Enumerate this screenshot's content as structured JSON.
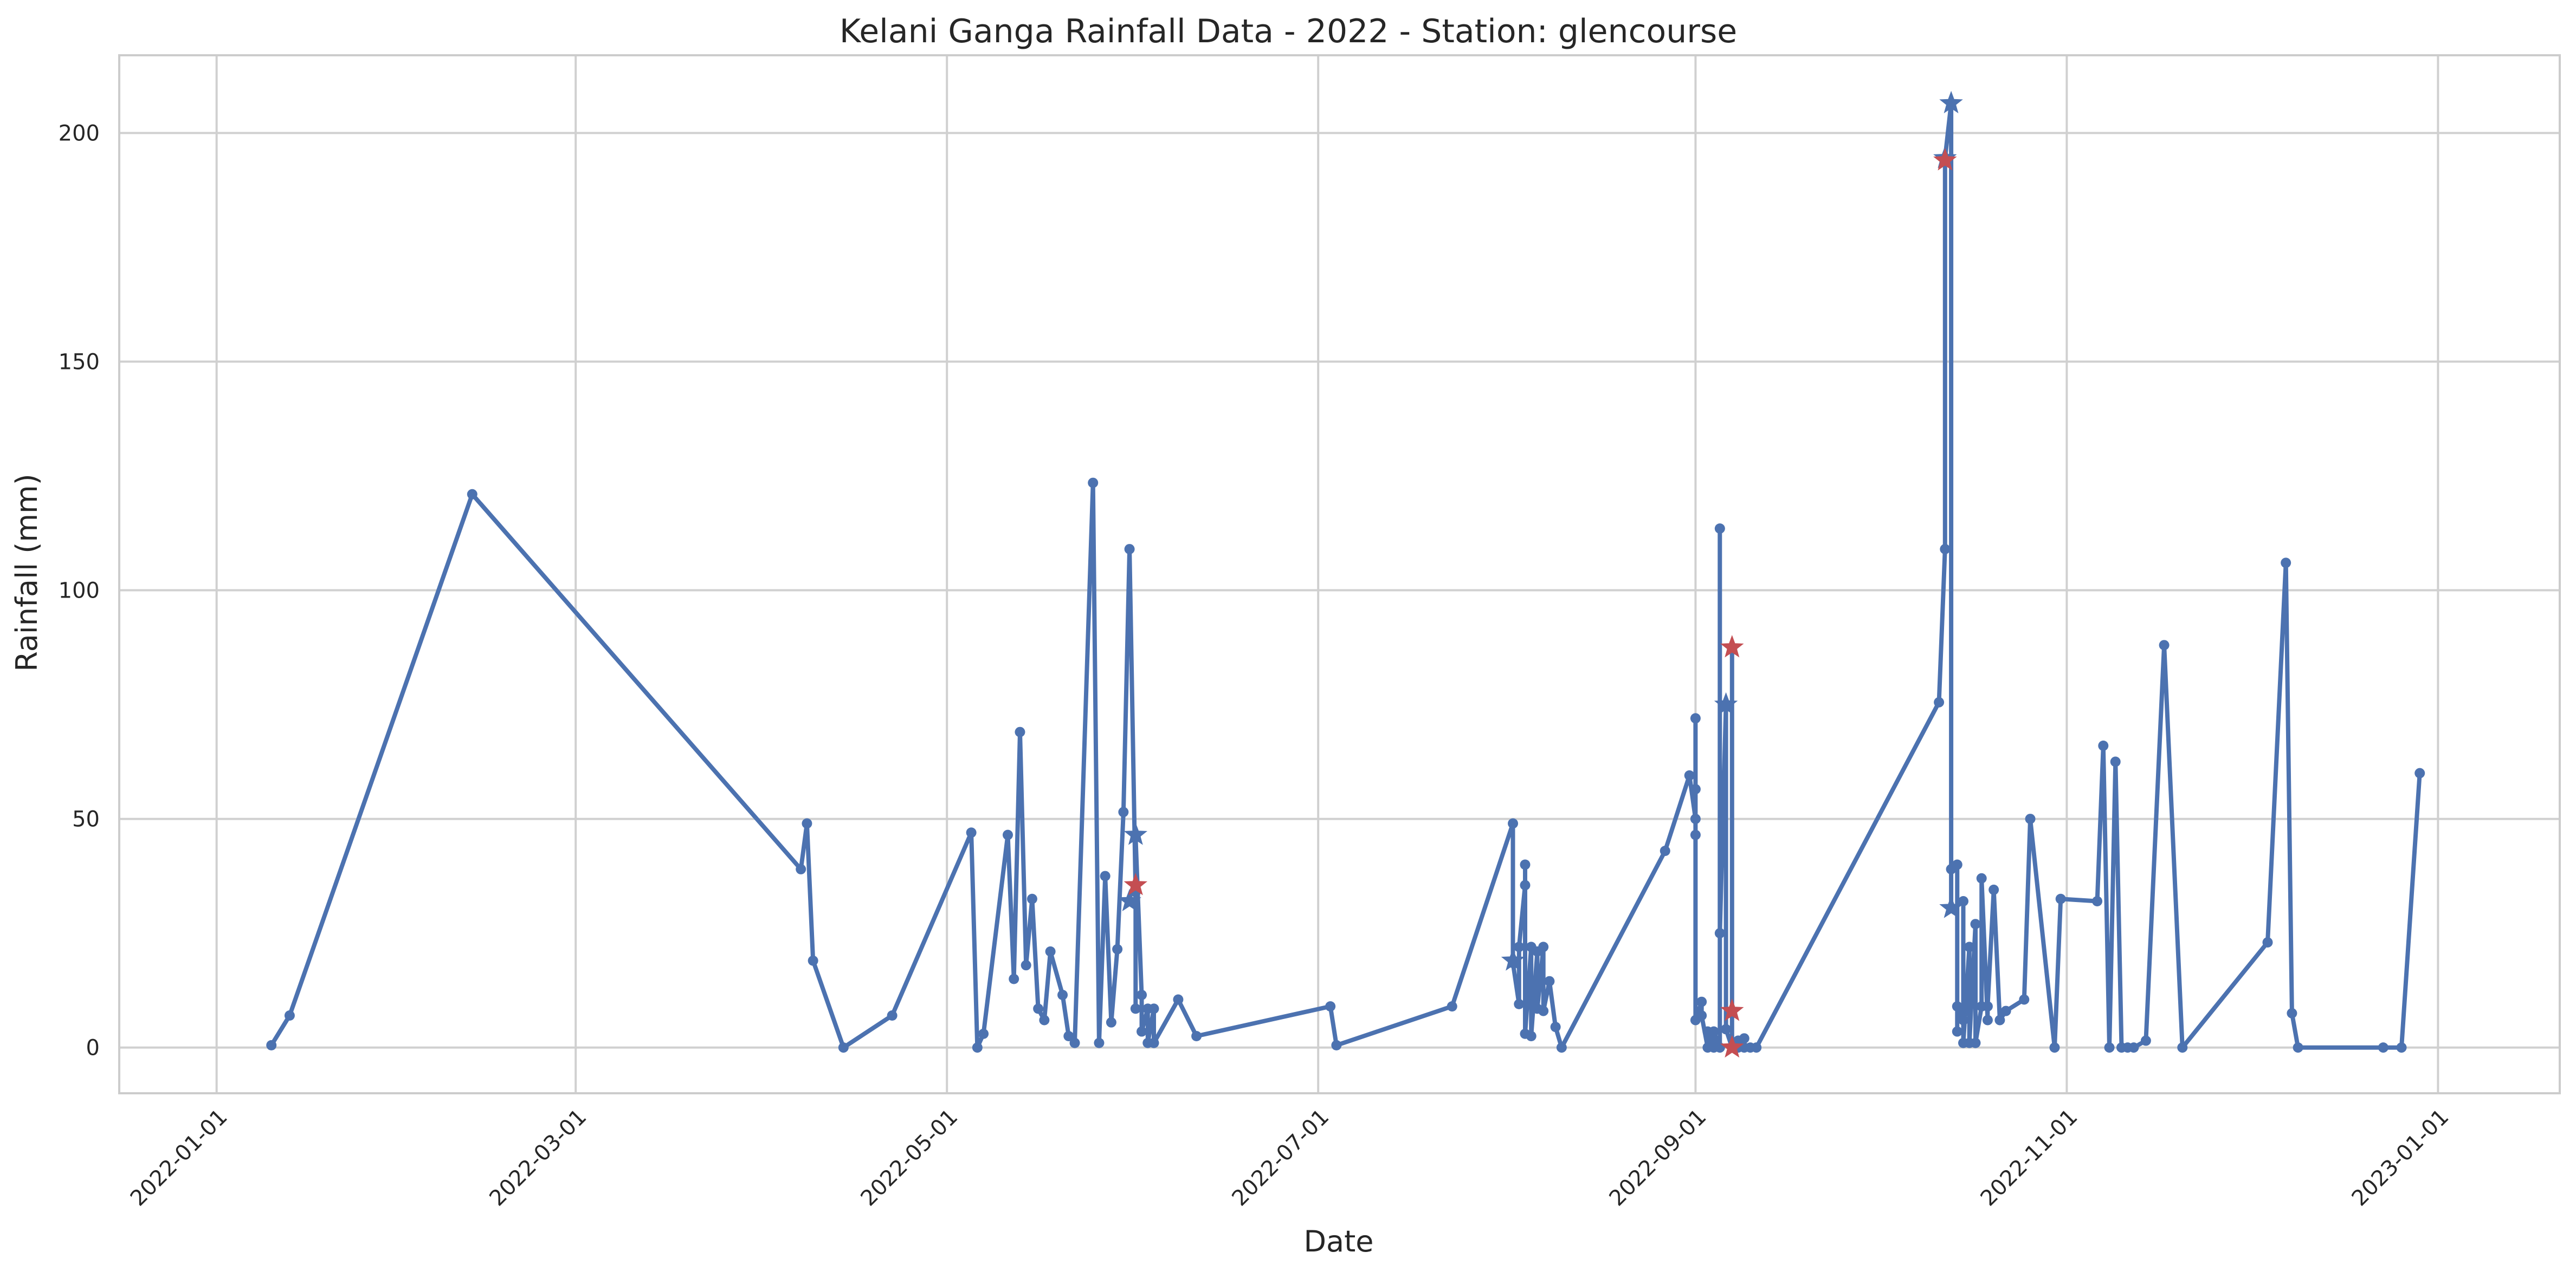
{
  "chart_data": {
    "type": "line",
    "title": "Kelani Ganga Rainfall Data - 2022 - Station: glencourse",
    "xlabel": "Date",
    "ylabel": "Rainfall (mm)",
    "xlim": [
      "2021-12-16",
      "2023-01-21"
    ],
    "ylim": [
      -10,
      217
    ],
    "x_ticks": [
      "2022-01-01",
      "2022-03-01",
      "2022-05-01",
      "2022-07-01",
      "2022-09-01",
      "2022-11-01",
      "2023-01-01"
    ],
    "y_ticks": [
      0,
      50,
      100,
      150,
      200
    ],
    "grid": true,
    "colors": {
      "line": "#4c72b0",
      "highlight": "#c44e52",
      "grid": "#d0d0d0",
      "spine": "#cccccc"
    },
    "series": [
      {
        "marker": "circle",
        "points": [
          [
            "2022-01-10",
            0.5
          ],
          [
            "2022-01-13",
            7
          ],
          [
            "2022-02-12",
            121
          ],
          [
            "2022-04-07",
            39
          ],
          [
            "2022-04-08",
            49
          ],
          [
            "2022-04-09",
            19
          ],
          [
            "2022-04-14",
            0
          ],
          [
            "2022-04-22",
            7
          ],
          [
            "2022-05-05",
            47
          ],
          [
            "2022-05-06",
            0
          ],
          [
            "2022-05-07",
            3
          ],
          [
            "2022-05-11",
            46.5
          ],
          [
            "2022-05-12",
            15
          ],
          [
            "2022-05-13",
            69
          ],
          [
            "2022-05-14",
            18
          ],
          [
            "2022-05-15",
            32.5
          ],
          [
            "2022-05-16",
            8.5
          ],
          [
            "2022-05-17",
            6
          ],
          [
            "2022-05-18",
            21
          ],
          [
            "2022-05-20",
            11.5
          ],
          [
            "2022-05-21",
            2.5
          ],
          [
            "2022-05-22",
            1
          ],
          [
            "2022-05-25",
            123.5
          ],
          [
            "2022-05-26",
            1
          ],
          [
            "2022-05-27",
            37.5
          ],
          [
            "2022-05-28",
            5.5
          ],
          [
            "2022-05-29",
            21.5
          ],
          [
            "2022-05-30",
            51.5
          ],
          [
            "2022-05-31",
            109
          ],
          [
            "2022-06-01",
            34
          ],
          [
            "2022-06-01",
            8.5
          ],
          [
            "2022-06-01",
            46
          ],
          [
            "2022-06-02",
            11.5
          ],
          [
            "2022-06-02",
            3.5
          ],
          [
            "2022-06-03",
            8.5
          ],
          [
            "2022-06-03",
            1
          ],
          [
            "2022-06-04",
            8.5
          ],
          [
            "2022-06-04",
            1
          ],
          [
            "2022-06-08",
            10.5
          ],
          [
            "2022-06-11",
            2.5
          ],
          [
            "2022-07-03",
            9
          ],
          [
            "2022-07-04",
            0.5
          ],
          [
            "2022-07-23",
            9
          ],
          [
            "2022-08-02",
            49
          ],
          [
            "2022-08-02",
            18.5
          ],
          [
            "2022-08-03",
            9.5
          ],
          [
            "2022-08-03",
            22
          ],
          [
            "2022-08-04",
            35.5
          ],
          [
            "2022-08-04",
            40
          ],
          [
            "2022-08-04",
            3
          ],
          [
            "2022-08-05",
            22
          ],
          [
            "2022-08-05",
            2.5
          ],
          [
            "2022-08-06",
            21
          ],
          [
            "2022-08-06",
            8.5
          ],
          [
            "2022-08-07",
            22
          ],
          [
            "2022-08-07",
            8
          ],
          [
            "2022-08-08",
            14.5
          ],
          [
            "2022-08-09",
            4.5
          ],
          [
            "2022-08-10",
            0
          ],
          [
            "2022-08-27",
            43
          ],
          [
            "2022-08-31",
            59.5
          ],
          [
            "2022-09-01",
            50
          ],
          [
            "2022-09-01",
            46.5
          ],
          [
            "2022-09-01",
            72
          ],
          [
            "2022-09-01",
            56.5
          ],
          [
            "2022-09-01",
            6
          ],
          [
            "2022-09-02",
            10
          ],
          [
            "2022-09-02",
            7
          ],
          [
            "2022-09-03",
            0
          ],
          [
            "2022-09-03",
            3.5
          ],
          [
            "2022-09-04",
            0
          ],
          [
            "2022-09-04",
            3.5
          ],
          [
            "2022-09-05",
            0
          ],
          [
            "2022-09-05",
            113.5
          ],
          [
            "2022-09-05",
            25
          ],
          [
            "2022-09-06",
            75
          ],
          [
            "2022-09-06",
            4
          ],
          [
            "2022-09-07",
            0
          ],
          [
            "2022-09-07",
            87
          ],
          [
            "2022-09-07",
            7.5
          ],
          [
            "2022-09-07",
            0
          ],
          [
            "2022-09-08",
            1.5
          ],
          [
            "2022-09-08",
            0
          ],
          [
            "2022-09-09",
            2
          ],
          [
            "2022-09-09",
            0
          ],
          [
            "2022-09-10",
            0
          ],
          [
            "2022-09-11",
            0
          ],
          [
            "2022-10-11",
            75.5
          ],
          [
            "2022-10-12",
            109
          ],
          [
            "2022-10-12",
            194.5
          ],
          [
            "2022-10-13",
            206.5
          ],
          [
            "2022-10-13",
            30.5
          ],
          [
            "2022-10-13",
            39
          ],
          [
            "2022-10-14",
            40
          ],
          [
            "2022-10-14",
            3.5
          ],
          [
            "2022-10-14",
            9
          ],
          [
            "2022-10-15",
            6
          ],
          [
            "2022-10-15",
            32
          ],
          [
            "2022-10-15",
            1
          ],
          [
            "2022-10-16",
            22
          ],
          [
            "2022-10-16",
            1
          ],
          [
            "2022-10-17",
            27
          ],
          [
            "2022-10-17",
            1
          ],
          [
            "2022-10-18",
            9
          ],
          [
            "2022-10-18",
            37
          ],
          [
            "2022-10-19",
            6
          ],
          [
            "2022-10-19",
            9
          ],
          [
            "2022-10-20",
            34.5
          ],
          [
            "2022-10-21",
            6
          ],
          [
            "2022-10-22",
            8
          ],
          [
            "2022-10-25",
            10.5
          ],
          [
            "2022-10-26",
            50
          ],
          [
            "2022-10-30",
            0
          ],
          [
            "2022-10-31",
            32.5
          ],
          [
            "2022-11-06",
            32
          ],
          [
            "2022-11-07",
            66
          ],
          [
            "2022-11-08",
            0
          ],
          [
            "2022-11-09",
            62.5
          ],
          [
            "2022-11-10",
            0
          ],
          [
            "2022-11-11",
            0
          ],
          [
            "2022-11-12",
            0
          ],
          [
            "2022-11-14",
            1.5
          ],
          [
            "2022-11-17",
            88
          ],
          [
            "2022-11-20",
            0
          ],
          [
            "2022-12-04",
            23
          ],
          [
            "2022-12-07",
            106
          ],
          [
            "2022-12-08",
            7.5
          ],
          [
            "2022-12-09",
            0
          ],
          [
            "2022-12-23",
            0
          ],
          [
            "2022-12-26",
            0
          ],
          [
            "2022-12-29",
            60
          ]
        ]
      },
      {
        "marker": "star",
        "color": "#4c72b0",
        "points": [
          [
            "2022-05-31",
            32
          ],
          [
            "2022-06-01",
            46.5
          ],
          [
            "2022-08-02",
            19
          ],
          [
            "2022-09-06",
            75
          ],
          [
            "2022-10-12",
            194.5
          ],
          [
            "2022-10-13",
            206.5
          ],
          [
            "2022-10-13",
            30.5
          ]
        ]
      },
      {
        "marker": "star",
        "color": "#c44e52",
        "points": [
          [
            "2022-06-01",
            35.5
          ],
          [
            "2022-09-07",
            87.5
          ],
          [
            "2022-09-07",
            8
          ],
          [
            "2022-09-07",
            0
          ],
          [
            "2022-10-12",
            194
          ]
        ]
      }
    ]
  }
}
